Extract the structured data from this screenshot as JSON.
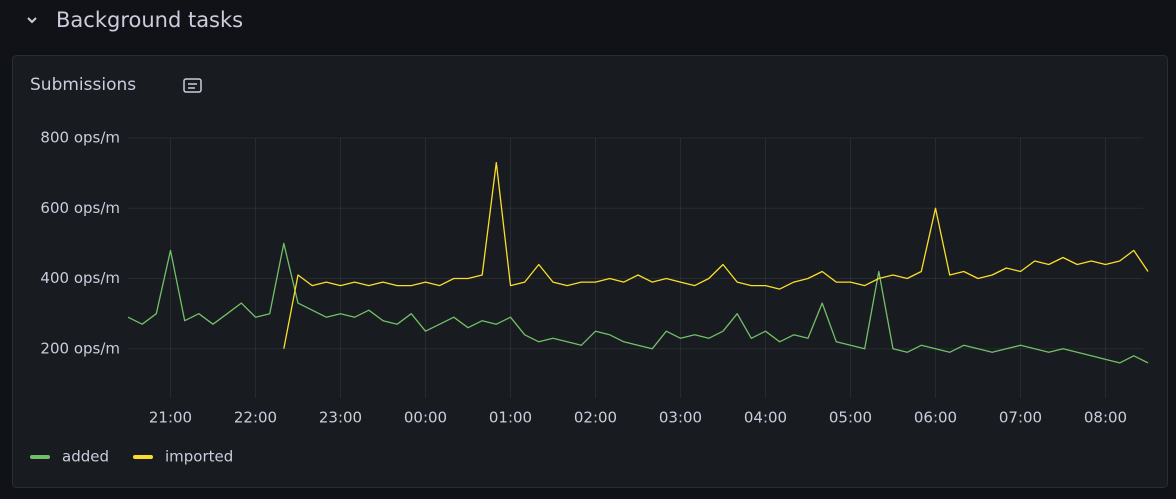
{
  "section": {
    "title": "Background tasks"
  },
  "chart_data": {
    "type": "line",
    "title": "Submissions",
    "categories": [
      null,
      null,
      null,
      "21:00",
      null,
      null,
      null,
      null,
      null,
      "22:00",
      null,
      null,
      null,
      null,
      null,
      "23:00",
      null,
      null,
      null,
      null,
      null,
      "00:00",
      null,
      null,
      null,
      null,
      null,
      "01:00",
      null,
      null,
      null,
      null,
      null,
      "02:00",
      null,
      null,
      null,
      null,
      null,
      "03:00",
      null,
      null,
      null,
      null,
      null,
      "04:00",
      null,
      null,
      null,
      null,
      null,
      "05:00",
      null,
      null,
      null,
      null,
      null,
      "06:00",
      null,
      null,
      null,
      null,
      null,
      "07:00",
      null,
      null,
      null,
      null,
      null,
      "08:00",
      null,
      null,
      null
    ],
    "series": [
      {
        "name": "added",
        "color": "#73bf69",
        "values": [
          290,
          270,
          300,
          480,
          280,
          300,
          270,
          300,
          330,
          290,
          300,
          500,
          330,
          310,
          290,
          300,
          290,
          310,
          280,
          270,
          300,
          250,
          270,
          290,
          260,
          280,
          270,
          290,
          240,
          220,
          230,
          220,
          210,
          250,
          240,
          220,
          210,
          200,
          250,
          230,
          240,
          230,
          250,
          300,
          230,
          250,
          220,
          240,
          230,
          330,
          220,
          210,
          200,
          420,
          200,
          190,
          210,
          200,
          190,
          210,
          200,
          190,
          200,
          210,
          200,
          190,
          200,
          190,
          180,
          170,
          160,
          180,
          160
        ]
      },
      {
        "name": "imported",
        "color": "#fade2a",
        "values": [
          null,
          null,
          null,
          null,
          null,
          null,
          null,
          null,
          null,
          null,
          null,
          200,
          410,
          380,
          390,
          380,
          390,
          380,
          390,
          380,
          380,
          390,
          380,
          400,
          400,
          410,
          730,
          380,
          390,
          440,
          390,
          380,
          390,
          390,
          400,
          390,
          410,
          390,
          400,
          390,
          380,
          400,
          440,
          390,
          380,
          380,
          370,
          390,
          400,
          420,
          390,
          390,
          380,
          400,
          410,
          400,
          420,
          600,
          410,
          420,
          400,
          410,
          430,
          420,
          450,
          440,
          460,
          440,
          450,
          440,
          450,
          480,
          420
        ]
      }
    ],
    "ylim": [
      60,
      800
    ],
    "yticks": [
      {
        "value": 200,
        "label": "200 ops/m"
      },
      {
        "value": 400,
        "label": "400 ops/m"
      },
      {
        "value": 600,
        "label": "600 ops/m"
      },
      {
        "value": 800,
        "label": "800 ops/m"
      }
    ],
    "grid": true,
    "legend": "bottom-left"
  }
}
